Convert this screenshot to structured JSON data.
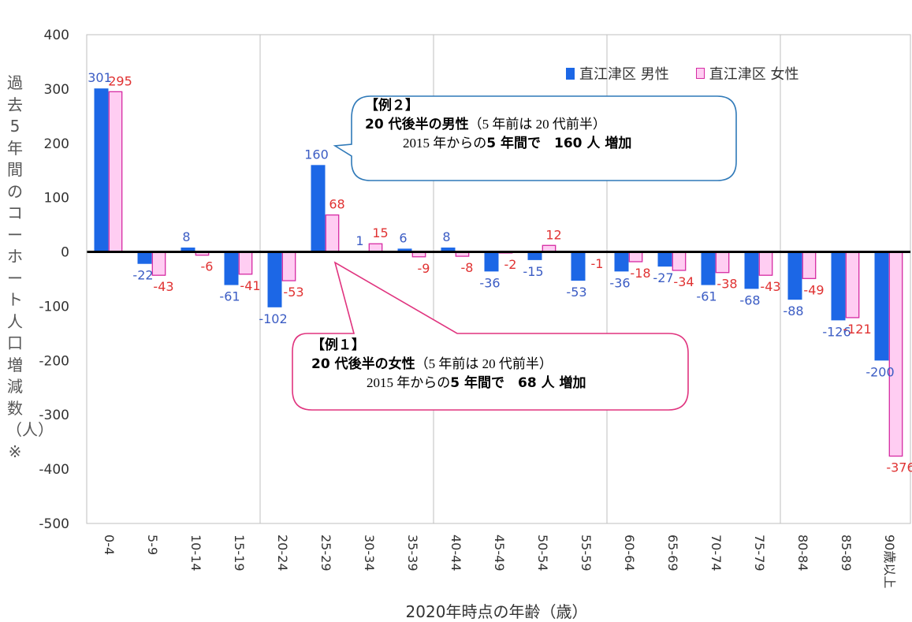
{
  "chart_data": {
    "type": "bar",
    "xlabel": "2020年時点の年齢（歳）",
    "ylabel": "過去5年間のコーホート人口増減数（人）※",
    "ylim": [
      -500,
      400
    ],
    "yticks": [
      400,
      300,
      200,
      100,
      0,
      -100,
      -200,
      -300,
      -400,
      -500
    ],
    "grid": "vertical every 4 categories",
    "legend": "top-right",
    "categories": [
      "0-4",
      "5-9",
      "10-14",
      "15-19",
      "20-24",
      "25-29",
      "30-34",
      "35-39",
      "40-44",
      "45-49",
      "50-54",
      "55-59",
      "60-64",
      "65-69",
      "70-74",
      "75-79",
      "80-84",
      "85-89",
      "90歳以上"
    ],
    "series": [
      {
        "name": "直江津区 男性",
        "color": "#1c67e6",
        "label_color": "#3b5cc4",
        "values": [
          301,
          -22,
          8,
          -61,
          -102,
          160,
          1,
          6,
          8,
          -36,
          -15,
          -53,
          -36,
          -27,
          -61,
          -68,
          -88,
          -126,
          -200
        ]
      },
      {
        "name": "直江津区 女性",
        "color": "#ffcdf2",
        "edge_color": "#d62ba3",
        "label_color": "#e03232",
        "values": [
          295,
          -43,
          -6,
          -41,
          -53,
          68,
          15,
          -9,
          -8,
          -2,
          12,
          -1,
          -18,
          -34,
          -38,
          -43,
          -49,
          -121,
          -376
        ]
      }
    ]
  },
  "annotations": {
    "example2": {
      "heading": "【例２】",
      "line1_bold": "20 代後半の男性",
      "line1_rest": "（5 年前は 20 代前半）",
      "line2_pre": "2015 年からの",
      "line2_bold": "5 年間で　160 人 増加"
    },
    "example1": {
      "heading": "【例１】",
      "line1_bold": "20 代後半の女性",
      "line1_rest": "（5 年前は 20 代前半）",
      "line2_pre": "2015 年からの",
      "line2_bold": "5 年間で　68 人 増加"
    }
  }
}
